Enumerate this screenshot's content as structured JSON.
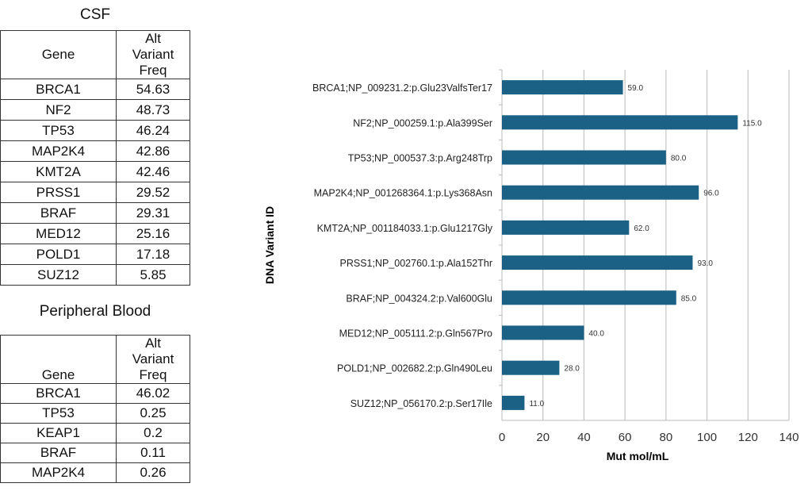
{
  "csf": {
    "title": "CSF",
    "headers": [
      "Gene",
      "Alt Variant Freq"
    ],
    "rows": [
      [
        "BRCA1",
        "54.63"
      ],
      [
        "NF2",
        "48.73"
      ],
      [
        "TP53",
        "46.24"
      ],
      [
        "MAP2K4",
        "42.86"
      ],
      [
        "KMT2A",
        "42.46"
      ],
      [
        "PRSS1",
        "29.52"
      ],
      [
        "BRAF",
        "29.31"
      ],
      [
        "MED12",
        "25.16"
      ],
      [
        "POLD1",
        "17.18"
      ],
      [
        "SUZ12",
        "5.85"
      ]
    ]
  },
  "blood": {
    "title": "Peripheral Blood",
    "headers": [
      "Gene",
      "Alt Variant Freq"
    ],
    "rows": [
      [
        "BRCA1",
        "46.02"
      ],
      [
        "TP53",
        "0.25"
      ],
      [
        "KEAP1",
        "0.2"
      ],
      [
        "BRAF",
        "0.11"
      ],
      [
        "MAP2K4",
        "0.26"
      ]
    ]
  },
  "chart_data": {
    "type": "bar",
    "orientation": "horizontal",
    "categories": [
      "BRCA1;NP_009231.2:p.Glu23ValfsTer17",
      "NF2;NP_000259.1:p.Ala399Ser",
      "TP53;NP_000537.3:p.Arg248Trp",
      "MAP2K4;NP_001268364.1:p.Lys368Asn",
      "KMT2A;NP_001184033.1:p.Glu1217Gly",
      "PRSS1;NP_002760.1:p.Ala152Thr",
      "BRAF;NP_004324.2:p.Val600Glu",
      "MED12;NP_005111.2:p.Gln567Pro",
      "POLD1;NP_002682.2:p.Gln490Leu",
      "SUZ12;NP_056170.2:p.Ser17Ile"
    ],
    "values": [
      59,
      115,
      80,
      96,
      62,
      93,
      85,
      40,
      28,
      11
    ],
    "data_labels": [
      "59.0",
      "115.0",
      "80.0",
      "96.0",
      "62.0",
      "93.0",
      "85.0",
      "40.0",
      "28.0",
      "11.0"
    ],
    "xlabel": "Mut mol/mL",
    "ylabel": "DNA Variant ID",
    "xlim": [
      0,
      140
    ],
    "xticks": [
      "0",
      "20",
      "40",
      "60",
      "80",
      "100",
      "120",
      "140"
    ],
    "grid": "vertical",
    "bar_color": "#1a6185"
  }
}
